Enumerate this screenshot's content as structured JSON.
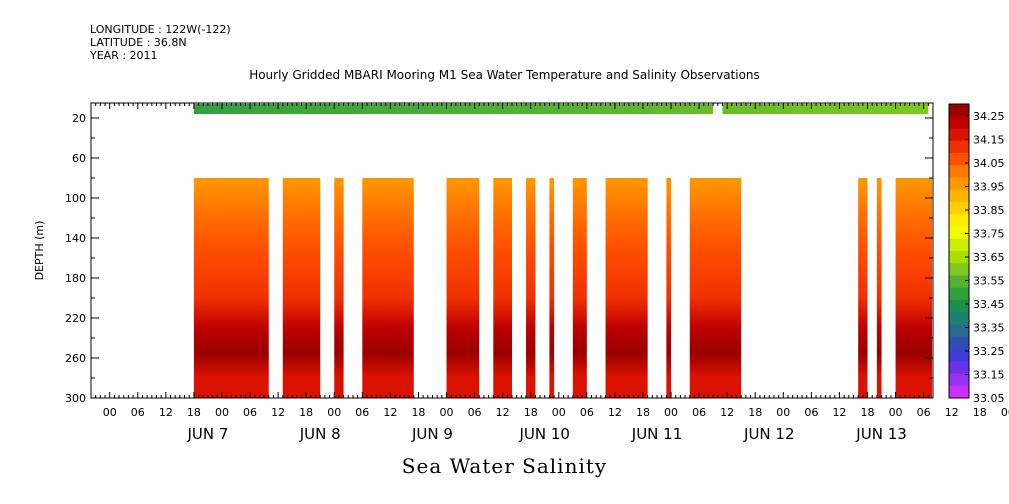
{
  "header": {
    "longitude": "LONGITUDE : 122W(-122)",
    "latitude": "LATITUDE : 36.8N",
    "year": "YEAR : 2011"
  },
  "title": "Hourly Gridded MBARI Mooring M1 Sea Water Temperature and Salinity Observations",
  "subtitle": "Sea Water Salinity",
  "chart_data": {
    "type": "heatmap",
    "title": "Hourly Gridded MBARI Mooring M1 Sea Water Temperature and Salinity Observations",
    "xlabel": "",
    "ylabel": "DEPTH (m)",
    "x_unit": "hours from JUN 7 00 UTC",
    "xlim": [
      -16,
      164
    ],
    "ylim": [
      300,
      0
    ],
    "y_ticks": [
      20,
      60,
      100,
      140,
      180,
      220,
      260,
      300
    ],
    "x_hour_ticks": [
      "00",
      "06",
      "12",
      "18",
      "00",
      "06",
      "12",
      "18",
      "00",
      "06",
      "12",
      "18",
      "00",
      "06",
      "12",
      "18",
      "00",
      "06",
      "12",
      "18",
      "00",
      "06",
      "12",
      "18",
      "00",
      "06",
      "12",
      "18",
      "00",
      "06",
      "12",
      "18",
      "00"
    ],
    "x_day_labels": [
      "JUN  7",
      "JUN  8",
      "JUN  9",
      "JUN 10",
      "JUN 11",
      "JUN 12",
      "JUN 13"
    ],
    "colorbar": {
      "labels": [
        "34.25",
        "34.15",
        "34.05",
        "33.95",
        "33.85",
        "33.75",
        "33.65",
        "33.55",
        "33.45",
        "33.35",
        "33.25",
        "33.15",
        "33.05"
      ],
      "colors": [
        "#9a0000",
        "#be0000",
        "#dc1200",
        "#f03000",
        "#ff5000",
        "#ff7800",
        "#ff9800",
        "#ffb400",
        "#ffd000",
        "#ffee00",
        "#f0ff00",
        "#ccee00",
        "#aadd00",
        "#7ec820",
        "#55b030",
        "#30a040",
        "#1a9050",
        "#208070",
        "#2a6890",
        "#3050b0",
        "#3d3dd8",
        "#6a30ee",
        "#9a30f6",
        "#cc30ff"
      ],
      "min": 33.05,
      "max": 34.3
    },
    "surface_sensor": {
      "depth": 10,
      "segments": [
        [
          6,
          117
        ],
        [
          119,
          163
        ]
      ],
      "values_start_end": [
        33.46,
        33.58
      ]
    },
    "profile_depth_range": [
      80,
      300
    ],
    "profile_segments": [
      [
        6,
        22
      ],
      [
        25,
        33
      ],
      [
        36,
        38
      ],
      [
        42,
        53
      ],
      [
        60,
        67
      ],
      [
        70,
        74
      ],
      [
        77,
        79
      ],
      [
        82,
        83
      ],
      [
        87,
        90
      ],
      [
        94,
        103
      ],
      [
        107,
        108
      ],
      [
        112,
        123
      ],
      [
        148,
        150
      ],
      [
        152,
        153
      ],
      [
        156,
        168
      ],
      [
        190,
        202
      ],
      [
        207,
        208
      ]
    ],
    "profile_structure": [
      {
        "depth": 80,
        "value": 33.98
      },
      {
        "depth": 110,
        "value": 34.02
      },
      {
        "depth": 150,
        "value": 34.1
      },
      {
        "depth": 200,
        "value": 34.15
      },
      {
        "depth": 230,
        "value": 34.22
      },
      {
        "depth": 255,
        "value": 34.28
      },
      {
        "depth": 280,
        "value": 34.2
      },
      {
        "depth": 300,
        "value": 34.18
      }
    ]
  }
}
